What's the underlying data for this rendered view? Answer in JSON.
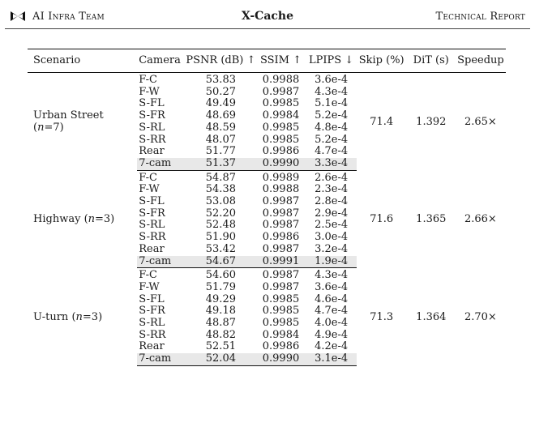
{
  "header": {
    "left": "AI Infra Team",
    "center": "X-Cache",
    "right": "Technical Report",
    "logo_icon": "bowtie-logo-icon"
  },
  "table": {
    "columns": [
      "Scenario",
      "Camera",
      "PSNR (dB) ↑",
      "SSIM ↑",
      "LPIPS ↓",
      "Skip (%)",
      "DiT (s)",
      "Speedup"
    ],
    "groups": [
      {
        "scenario_name": "Urban Street",
        "n_label": "(n=7)",
        "skip": "71.4",
        "dit": "1.392",
        "speedup": "2.65×",
        "rows": [
          {
            "camera": "F-C",
            "psnr": "53.83",
            "ssim": "0.9988",
            "lpips": "3.6e-4"
          },
          {
            "camera": "F-W",
            "psnr": "50.27",
            "ssim": "0.9987",
            "lpips": "4.3e-4"
          },
          {
            "camera": "S-FL",
            "psnr": "49.49",
            "ssim": "0.9985",
            "lpips": "5.1e-4"
          },
          {
            "camera": "S-FR",
            "psnr": "48.69",
            "ssim": "0.9984",
            "lpips": "5.2e-4"
          },
          {
            "camera": "S-RL",
            "psnr": "48.59",
            "ssim": "0.9985",
            "lpips": "4.8e-4"
          },
          {
            "camera": "S-RR",
            "psnr": "48.07",
            "ssim": "0.9985",
            "lpips": "5.2e-4"
          },
          {
            "camera": "Rear",
            "psnr": "51.77",
            "ssim": "0.9986",
            "lpips": "4.7e-4"
          },
          {
            "camera": "7-cam",
            "psnr": "51.37",
            "ssim": "0.9990",
            "lpips": "3.3e-4"
          }
        ]
      },
      {
        "scenario_name": "Highway",
        "n_label": "(n=3)",
        "skip": "71.6",
        "dit": "1.365",
        "speedup": "2.66×",
        "rows": [
          {
            "camera": "F-C",
            "psnr": "54.87",
            "ssim": "0.9989",
            "lpips": "2.6e-4"
          },
          {
            "camera": "F-W",
            "psnr": "54.38",
            "ssim": "0.9988",
            "lpips": "2.3e-4"
          },
          {
            "camera": "S-FL",
            "psnr": "53.08",
            "ssim": "0.9987",
            "lpips": "2.8e-4"
          },
          {
            "camera": "S-FR",
            "psnr": "52.20",
            "ssim": "0.9987",
            "lpips": "2.9e-4"
          },
          {
            "camera": "S-RL",
            "psnr": "52.48",
            "ssim": "0.9987",
            "lpips": "2.5e-4"
          },
          {
            "camera": "S-RR",
            "psnr": "51.90",
            "ssim": "0.9986",
            "lpips": "3.0e-4"
          },
          {
            "camera": "Rear",
            "psnr": "53.42",
            "ssim": "0.9987",
            "lpips": "3.2e-4"
          },
          {
            "camera": "7-cam",
            "psnr": "54.67",
            "ssim": "0.9991",
            "lpips": "1.9e-4"
          }
        ]
      },
      {
        "scenario_name": "U-turn",
        "n_label": "(n=3)",
        "skip": "71.3",
        "dit": "1.364",
        "speedup": "2.70×",
        "rows": [
          {
            "camera": "F-C",
            "psnr": "54.60",
            "ssim": "0.9987",
            "lpips": "4.3e-4"
          },
          {
            "camera": "F-W",
            "psnr": "51.79",
            "ssim": "0.9987",
            "lpips": "3.6e-4"
          },
          {
            "camera": "S-FL",
            "psnr": "49.29",
            "ssim": "0.9985",
            "lpips": "4.6e-4"
          },
          {
            "camera": "S-FR",
            "psnr": "49.18",
            "ssim": "0.9985",
            "lpips": "4.7e-4"
          },
          {
            "camera": "S-RL",
            "psnr": "48.87",
            "ssim": "0.9985",
            "lpips": "4.0e-4"
          },
          {
            "camera": "S-RR",
            "psnr": "48.82",
            "ssim": "0.9984",
            "lpips": "4.9e-4"
          },
          {
            "camera": "Rear",
            "psnr": "52.51",
            "ssim": "0.9986",
            "lpips": "4.2e-4"
          },
          {
            "camera": "7-cam",
            "psnr": "52.04",
            "ssim": "0.9990",
            "lpips": "3.1e-4"
          }
        ]
      }
    ],
    "highlight_color": "#e8e8e8"
  }
}
